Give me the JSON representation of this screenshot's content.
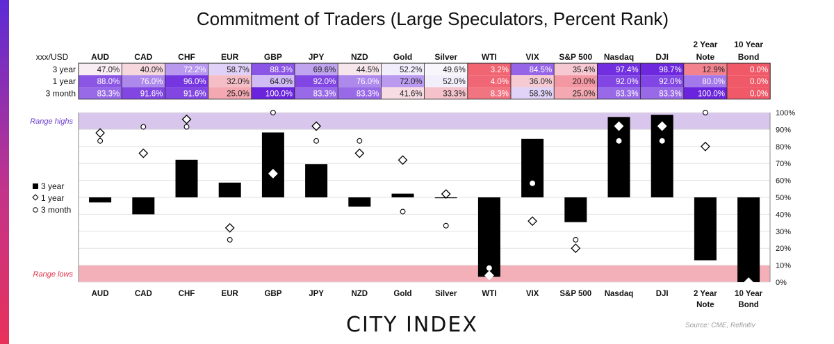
{
  "title": "Commitment of Traders (Large Speculators, Percent Rank)",
  "table": {
    "corner_label": "xxx/USD",
    "row_labels": [
      "3 year",
      "1 year",
      "3 month"
    ]
  },
  "legend": {
    "items": [
      "3 year",
      "1 year",
      "3 month"
    ]
  },
  "bands": {
    "high_label": "Range highs",
    "low_label": "Range lows",
    "high_color": "#d9c6ec",
    "low_color": "#f4b0b8"
  },
  "footer": {
    "brand": "CITY INDEX",
    "source": "Source: CME, Refinitiv"
  },
  "chart_data": {
    "type": "bar",
    "categories": [
      "AUD",
      "CAD",
      "CHF",
      "EUR",
      "GBP",
      "JPY",
      "NZD",
      "Gold",
      "Silver",
      "WTI",
      "VIX",
      "S&P 500",
      "Nasdaq",
      "DJI",
      "2 Year Note",
      "10 Year Bond"
    ],
    "category_lines": [
      [
        "AUD"
      ],
      [
        "CAD"
      ],
      [
        "CHF"
      ],
      [
        "EUR"
      ],
      [
        "GBP"
      ],
      [
        "JPY"
      ],
      [
        "NZD"
      ],
      [
        "Gold"
      ],
      [
        "Silver"
      ],
      [
        "WTI"
      ],
      [
        "VIX"
      ],
      [
        "S&P 500"
      ],
      [
        "Nasdaq"
      ],
      [
        "DJI"
      ],
      [
        "2 Year",
        "Note"
      ],
      [
        "10 Year",
        "Bond"
      ]
    ],
    "series": [
      {
        "name": "3 year",
        "marker": "bar",
        "values": [
          47.0,
          40.0,
          72.2,
          58.7,
          88.3,
          69.6,
          44.5,
          52.2,
          49.6,
          3.2,
          84.5,
          35.4,
          97.4,
          98.7,
          12.9,
          0.0
        ]
      },
      {
        "name": "1 year",
        "marker": "diamond",
        "values": [
          88.0,
          76.0,
          96.0,
          32.0,
          64.0,
          92.0,
          76.0,
          72.0,
          52.0,
          4.0,
          36.0,
          20.0,
          92.0,
          92.0,
          80.0,
          0.0
        ]
      },
      {
        "name": "3 month",
        "marker": "circle",
        "values": [
          83.3,
          91.6,
          91.6,
          25.0,
          100.0,
          83.3,
          83.3,
          41.6,
          33.3,
          8.3,
          58.3,
          25.0,
          83.3,
          83.3,
          100.0,
          0.0
        ]
      }
    ],
    "table_text": [
      [
        "47.0%",
        "40.0%",
        "72.2%",
        "58.7%",
        "88.3%",
        "69.6%",
        "44.5%",
        "52.2%",
        "49.6%",
        "3.2%",
        "84.5%",
        "35.4%",
        "97.4%",
        "98.7%",
        "12.9%",
        "0.0%"
      ],
      [
        "88.0%",
        "76.0%",
        "96.0%",
        "32.0%",
        "64.0%",
        "92.0%",
        "76.0%",
        "72.0%",
        "52.0%",
        "4.0%",
        "36.0%",
        "20.0%",
        "92.0%",
        "92.0%",
        "80.0%",
        "0.0%"
      ],
      [
        "83.3%",
        "91.6%",
        "91.6%",
        "25.0%",
        "100.0%",
        "83.3%",
        "83.3%",
        "41.6%",
        "33.3%",
        "8.3%",
        "58.3%",
        "25.0%",
        "83.3%",
        "83.3%",
        "100.0%",
        "0.0%"
      ]
    ],
    "ylim": [
      0,
      100
    ],
    "baseline": 50,
    "yticks": [
      0,
      10,
      20,
      30,
      40,
      50,
      60,
      70,
      80,
      90,
      100
    ],
    "ytick_labels": [
      "0%",
      "10%",
      "20%",
      "30%",
      "40%",
      "50%",
      "60%",
      "70%",
      "80%",
      "90%",
      "100%"
    ],
    "range_high": [
      90,
      100
    ],
    "range_low": [
      0,
      10
    ],
    "grid": true,
    "legend_position": "left"
  }
}
